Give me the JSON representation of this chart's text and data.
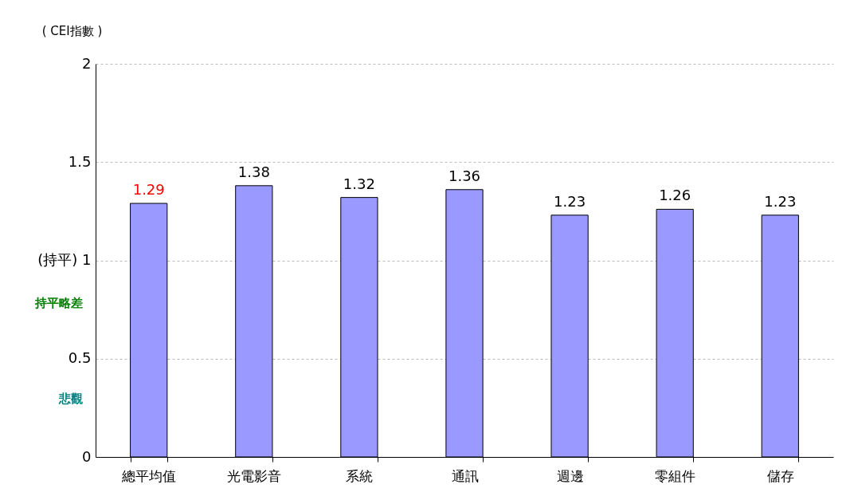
{
  "chart_data": {
    "type": "bar",
    "ylabel": "( CEI指數 )",
    "categories": [
      "總平均值",
      "光電影音",
      "系統",
      "通訊",
      "週邊",
      "零組件",
      "儲存"
    ],
    "values": [
      1.29,
      1.38,
      1.32,
      1.36,
      1.23,
      1.26,
      1.23
    ],
    "color": "#9999ff",
    "ylim": [
      0,
      2
    ],
    "yticks": [
      0,
      0.5,
      {
        "value": 1,
        "label": "(持平) 1"
      },
      1.5,
      2
    ],
    "grid": "y",
    "data_labels": true,
    "annotations": [
      "持平略差",
      "悲觀"
    ]
  }
}
